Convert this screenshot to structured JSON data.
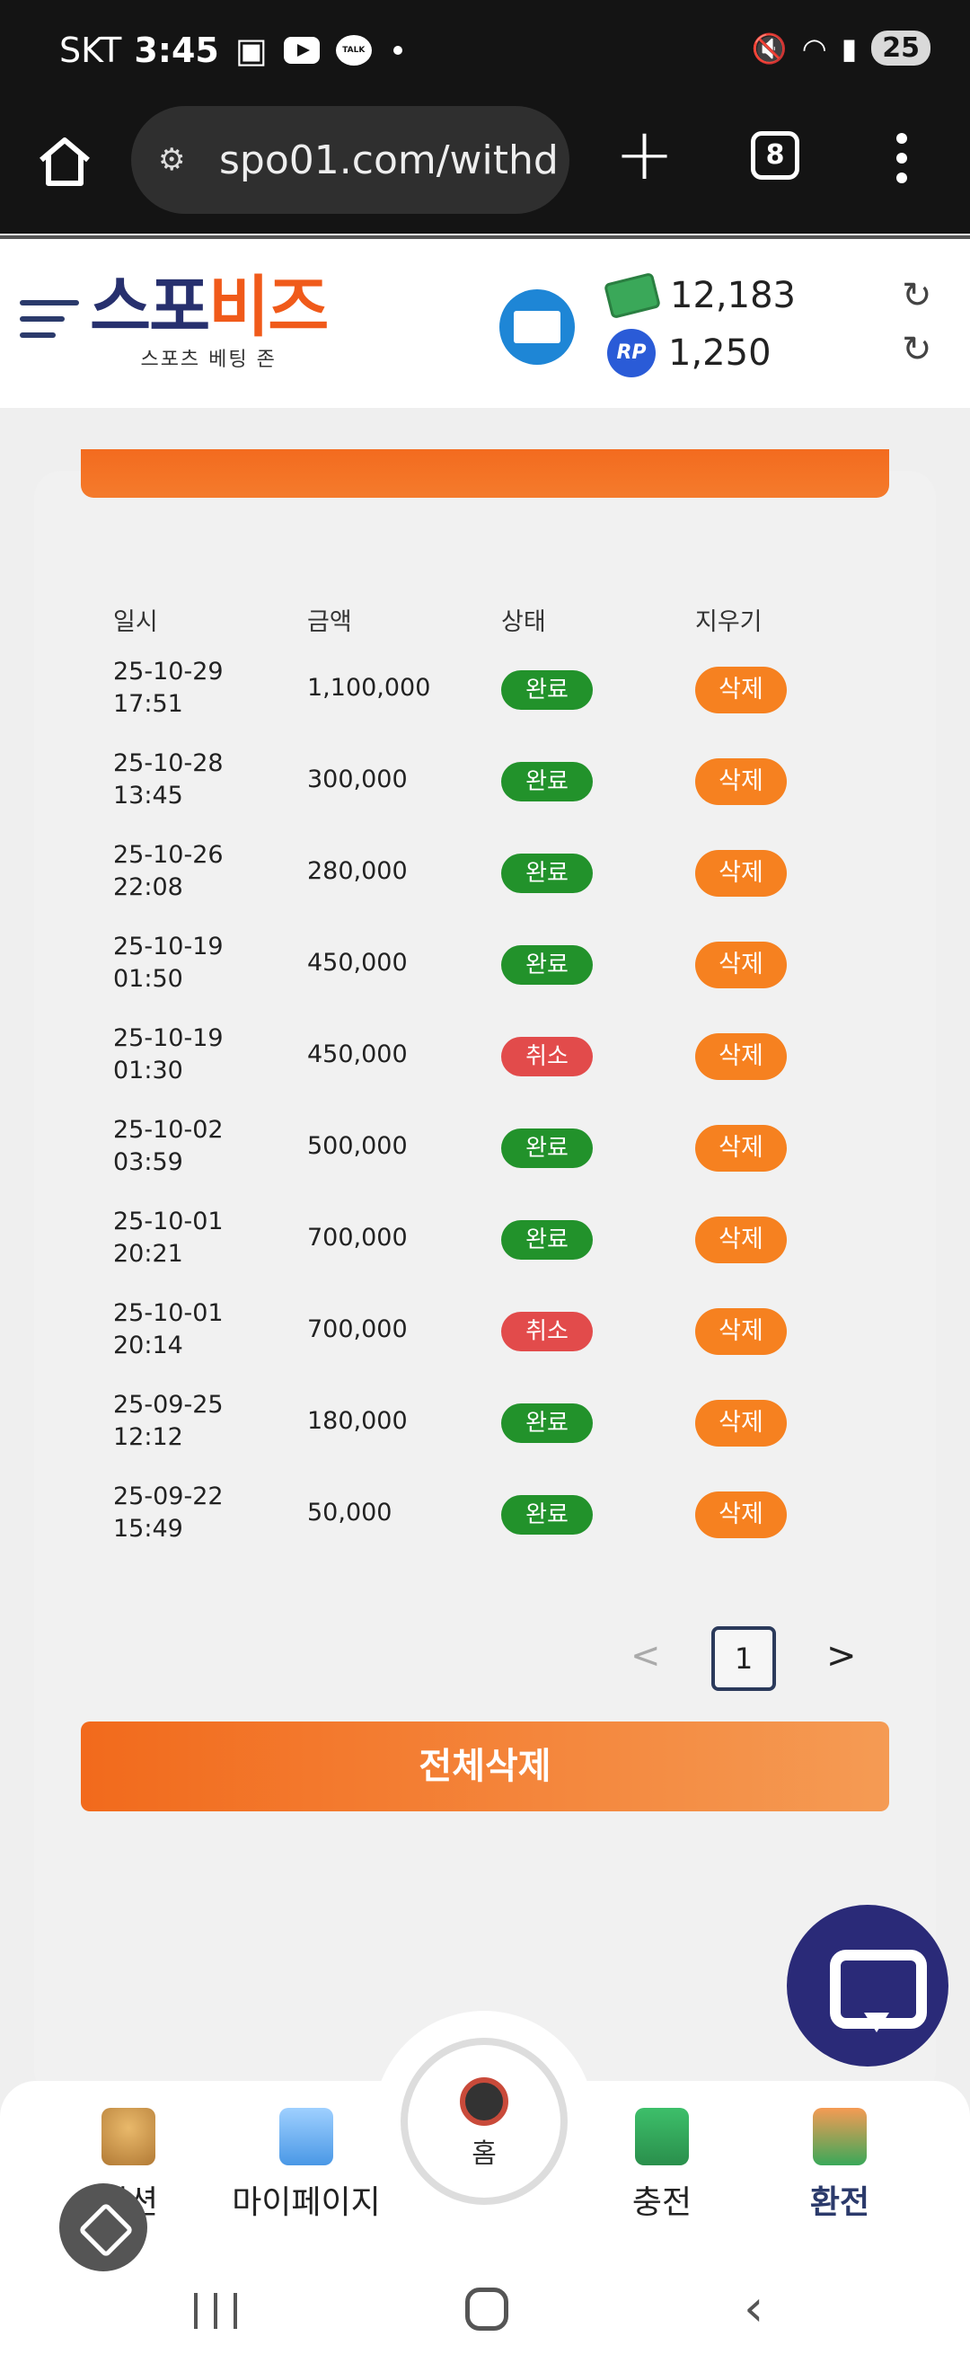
{
  "status_bar": {
    "carrier": "SKT",
    "time": "3:45",
    "talk_label": "TALK",
    "battery": "25"
  },
  "browser": {
    "url": "spo01.com/withd",
    "tab_count": "8"
  },
  "header": {
    "logo_part1": "스포",
    "logo_part2": "비즈",
    "logo_sub": "스포츠 베팅 존",
    "cash": "12,183",
    "rp_label": "RP",
    "rp": "1,250"
  },
  "table": {
    "headers": {
      "date": "일시",
      "amount": "금액",
      "status": "상태",
      "delete": "지우기"
    },
    "rows": [
      {
        "date": "25-10-29",
        "time": "17:51",
        "amount": "1,100,000",
        "status": "완료",
        "status_type": "done",
        "delete": "삭제"
      },
      {
        "date": "25-10-28",
        "time": "13:45",
        "amount": "300,000",
        "status": "완료",
        "status_type": "done",
        "delete": "삭제"
      },
      {
        "date": "25-10-26",
        "time": "22:08",
        "amount": "280,000",
        "status": "완료",
        "status_type": "done",
        "delete": "삭제"
      },
      {
        "date": "25-10-19",
        "time": "01:50",
        "amount": "450,000",
        "status": "완료",
        "status_type": "done",
        "delete": "삭제"
      },
      {
        "date": "25-10-19",
        "time": "01:30",
        "amount": "450,000",
        "status": "취소",
        "status_type": "cancel",
        "delete": "삭제"
      },
      {
        "date": "25-10-02",
        "time": "03:59",
        "amount": "500,000",
        "status": "완료",
        "status_type": "done",
        "delete": "삭제"
      },
      {
        "date": "25-10-01",
        "time": "20:21",
        "amount": "700,000",
        "status": "완료",
        "status_type": "done",
        "delete": "삭제"
      },
      {
        "date": "25-10-01",
        "time": "20:14",
        "amount": "700,000",
        "status": "취소",
        "status_type": "cancel",
        "delete": "삭제"
      },
      {
        "date": "25-09-25",
        "time": "12:12",
        "amount": "180,000",
        "status": "완료",
        "status_type": "done",
        "delete": "삭제"
      },
      {
        "date": "25-09-22",
        "time": "15:49",
        "amount": "50,000",
        "status": "완료",
        "status_type": "done",
        "delete": "삭제"
      }
    ]
  },
  "pager": {
    "current": "1",
    "prev": "<",
    "next": ">"
  },
  "delete_all_label": "전체삭제",
  "bottom_nav": {
    "items": [
      {
        "label": "미션",
        "icon": "trophy-icon"
      },
      {
        "label": "마이페이지",
        "icon": "folder-icon"
      },
      {
        "label": "충전",
        "icon": "charge-icon"
      },
      {
        "label": "환전",
        "icon": "exchange-icon"
      }
    ],
    "home_label": "홈"
  },
  "colors": {
    "done": "#22922b",
    "cancel": "#e24b4b",
    "delete": "#f68120",
    "accent_orange": "#f26a1c",
    "navy": "#2b3a6b"
  }
}
